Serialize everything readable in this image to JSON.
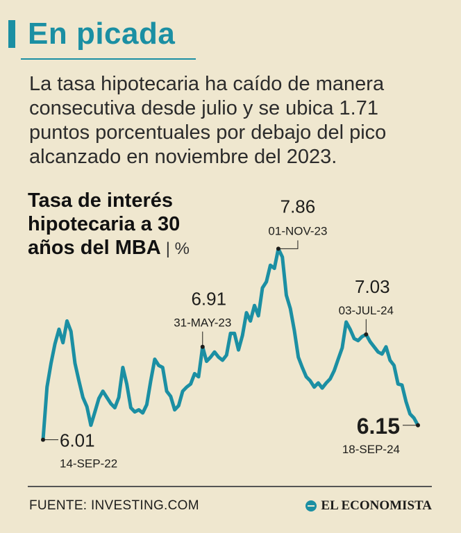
{
  "headline": "En picada",
  "summary": "La tasa hipotecaria ha caído de manera consecutiva desde julio y se ubica 1.71 puntos porcentuales por debajo del pico alcanzado en noviembre del 2023.",
  "chart_title": "Tasa de interés hipotecaria a 30 años del MBA",
  "chart_unit": "%",
  "source": "FUENTE: INVESTING.COM",
  "brand": "EL ECONOMISTA",
  "colors": {
    "line": "#1b8fa3",
    "background": "#efe7cf",
    "text": "#1d1d1b"
  },
  "chart_data": {
    "type": "line",
    "title": "Tasa de interés hipotecaria a 30 años del MBA",
    "ylabel": "%",
    "xlabel": "",
    "ylim": [
      5.9,
      7.95
    ],
    "x_start": "14-SEP-22",
    "x_end": "18-SEP-24",
    "series": [
      {
        "name": "Tasa hipotecaria 30 años MBA",
        "values": [
          6.01,
          6.52,
          6.75,
          6.94,
          7.08,
          6.95,
          7.16,
          7.06,
          6.75,
          6.58,
          6.42,
          6.33,
          6.15,
          6.28,
          6.41,
          6.48,
          6.42,
          6.36,
          6.32,
          6.42,
          6.71,
          6.55,
          6.32,
          6.28,
          6.3,
          6.27,
          6.35,
          6.58,
          6.79,
          6.73,
          6.71,
          6.48,
          6.43,
          6.3,
          6.34,
          6.48,
          6.52,
          6.55,
          6.65,
          6.62,
          6.91,
          6.77,
          6.81,
          6.86,
          6.81,
          6.78,
          6.83,
          7.04,
          7.04,
          6.88,
          7.02,
          7.24,
          7.16,
          7.31,
          7.21,
          7.48,
          7.54,
          7.7,
          7.67,
          7.86,
          7.78,
          7.41,
          7.28,
          7.07,
          6.81,
          6.71,
          6.62,
          6.58,
          6.52,
          6.56,
          6.51,
          6.56,
          6.6,
          6.68,
          6.79,
          6.9,
          7.15,
          7.08,
          6.99,
          6.97,
          7.01,
          7.03,
          6.96,
          6.91,
          6.86,
          6.84,
          6.91,
          6.78,
          6.73,
          6.55,
          6.54,
          6.38,
          6.26,
          6.22,
          6.15
        ]
      }
    ],
    "annotations": [
      {
        "label": "6.01",
        "date": "14-SEP-22",
        "index": 0,
        "emphasis": false
      },
      {
        "label": "6.91",
        "date": "31-MAY-23",
        "index": 40,
        "emphasis": false
      },
      {
        "label": "7.86",
        "date": "01-NOV-23",
        "index": 59,
        "emphasis": false
      },
      {
        "label": "7.03",
        "date": "03-JUL-24",
        "index": 81,
        "emphasis": false
      },
      {
        "label": "6.15",
        "date": "18-SEP-24",
        "index": 94,
        "emphasis": true
      }
    ]
  }
}
